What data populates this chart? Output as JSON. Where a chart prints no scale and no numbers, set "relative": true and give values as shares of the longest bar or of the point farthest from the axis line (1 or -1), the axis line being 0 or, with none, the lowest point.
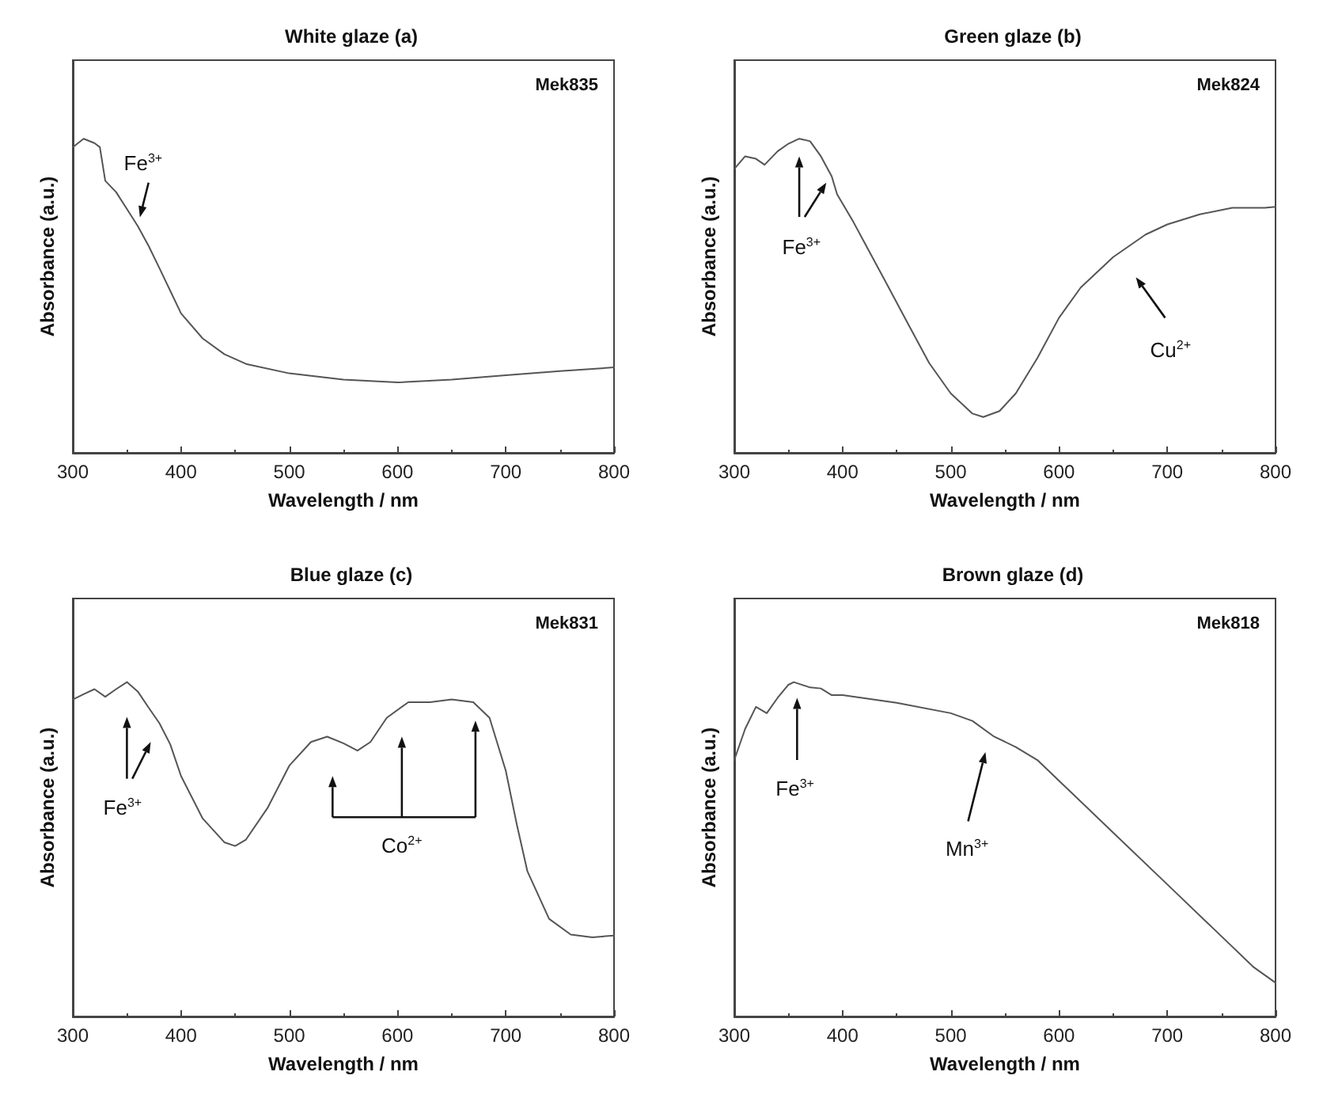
{
  "chart_data": [
    {
      "type": "line",
      "title": "White glaze (a)",
      "xlabel": "Wavelength / nm",
      "ylabel": "Absorbance (a.u.)",
      "relative": true,
      "xlim": [
        300,
        800
      ],
      "xticks": [
        300,
        400,
        500,
        600,
        700,
        800
      ],
      "marker": "none",
      "annotations": [
        "Mek835",
        "Fe$^{3+}$"
      ],
      "series": [
        {
          "color": "#555555",
          "x": [
            300,
            310,
            320,
            325,
            330,
            340,
            350,
            360,
            370,
            380,
            390,
            400,
            420,
            440,
            460,
            500,
            550,
            600,
            650,
            700,
            750,
            800
          ],
          "values": [
            0.973,
            1,
            0.986,
            0.973,
            0.866,
            0.83,
            0.776,
            0.722,
            0.659,
            0.588,
            0.516,
            0.444,
            0.364,
            0.314,
            0.283,
            0.253,
            0.233,
            0.224,
            0.233,
            0.247,
            0.26,
            0.272
          ]
        }
      ]
    },
    {
      "type": "line",
      "title": "Green glaze (b)",
      "xlabel": "Wavelength / nm",
      "ylabel": "Absorbance (a.u.)",
      "relative": true,
      "xlim": [
        300,
        800
      ],
      "xticks": [
        300,
        400,
        500,
        600,
        700,
        800
      ],
      "marker": "none",
      "annotations": [
        "Mek824",
        "Fe$^{3+}$",
        "Cu$^{2+}$"
      ],
      "series": [
        {
          "color": "#555555",
          "x": [
            300,
            310,
            320,
            328,
            340,
            350,
            360,
            370,
            380,
            390,
            395,
            410,
            420,
            440,
            460,
            480,
            500,
            520,
            530,
            545,
            560,
            580,
            600,
            620,
            650,
            680,
            700,
            730,
            760,
            790,
            800
          ],
          "values": [
            0.904,
            0.944,
            0.936,
            0.917,
            0.96,
            0.984,
            1,
            0.992,
            0.944,
            0.88,
            0.823,
            0.735,
            0.671,
            0.543,
            0.414,
            0.286,
            0.189,
            0.125,
            0.114,
            0.133,
            0.189,
            0.302,
            0.43,
            0.526,
            0.623,
            0.695,
            0.727,
            0.759,
            0.78,
            0.78,
            0.783
          ]
        }
      ]
    },
    {
      "type": "line",
      "title": "Blue glaze (c)",
      "xlabel": "Wavelength / nm",
      "ylabel": "Absorbance (a.u.)",
      "relative": true,
      "xlim": [
        300,
        800
      ],
      "xticks": [
        300,
        400,
        500,
        600,
        700,
        800
      ],
      "marker": "none",
      "annotations": [
        "Mek831",
        "Fe$^{3+}$",
        "Co$^{2+}$"
      ],
      "series": [
        {
          "color": "#555555",
          "x": [
            300,
            310,
            320,
            330,
            340,
            350,
            360,
            370,
            380,
            390,
            400,
            420,
            440,
            450,
            460,
            480,
            500,
            520,
            535,
            550,
            563,
            575,
            590,
            610,
            630,
            650,
            670,
            685,
            700,
            710,
            720,
            740,
            760,
            780,
            800
          ],
          "values": [
            0.948,
            0.964,
            0.979,
            0.956,
            0.979,
            1,
            0.972,
            0.924,
            0.877,
            0.814,
            0.719,
            0.592,
            0.521,
            0.51,
            0.529,
            0.624,
            0.75,
            0.821,
            0.837,
            0.817,
            0.795,
            0.821,
            0.893,
            0.94,
            0.94,
            0.948,
            0.94,
            0.893,
            0.735,
            0.577,
            0.434,
            0.292,
            0.245,
            0.237,
            0.242
          ]
        }
      ]
    },
    {
      "type": "line",
      "title": "Brown glaze (d)",
      "xlabel": "Wavelength / nm",
      "ylabel": "Absorbance (a.u.)",
      "relative": true,
      "xlim": [
        300,
        800
      ],
      "xticks": [
        300,
        400,
        500,
        600,
        700,
        800
      ],
      "marker": "none",
      "annotations": [
        "Mek818",
        "Fe$^{3+}$",
        "Mn$^{3+}$"
      ],
      "series": [
        {
          "color": "#555555",
          "x": [
            300,
            310,
            320,
            330,
            340,
            350,
            355,
            370,
            380,
            390,
            400,
            450,
            500,
            520,
            540,
            560,
            580,
            600,
            650,
            700,
            750,
            780,
            800
          ],
          "values": [
            0.767,
            0.86,
            0.926,
            0.907,
            0.953,
            0.992,
            1,
            0.984,
            0.981,
            0.961,
            0.961,
            0.938,
            0.907,
            0.884,
            0.837,
            0.806,
            0.767,
            0.705,
            0.55,
            0.395,
            0.24,
            0.147,
            0.101
          ]
        }
      ]
    }
  ]
}
